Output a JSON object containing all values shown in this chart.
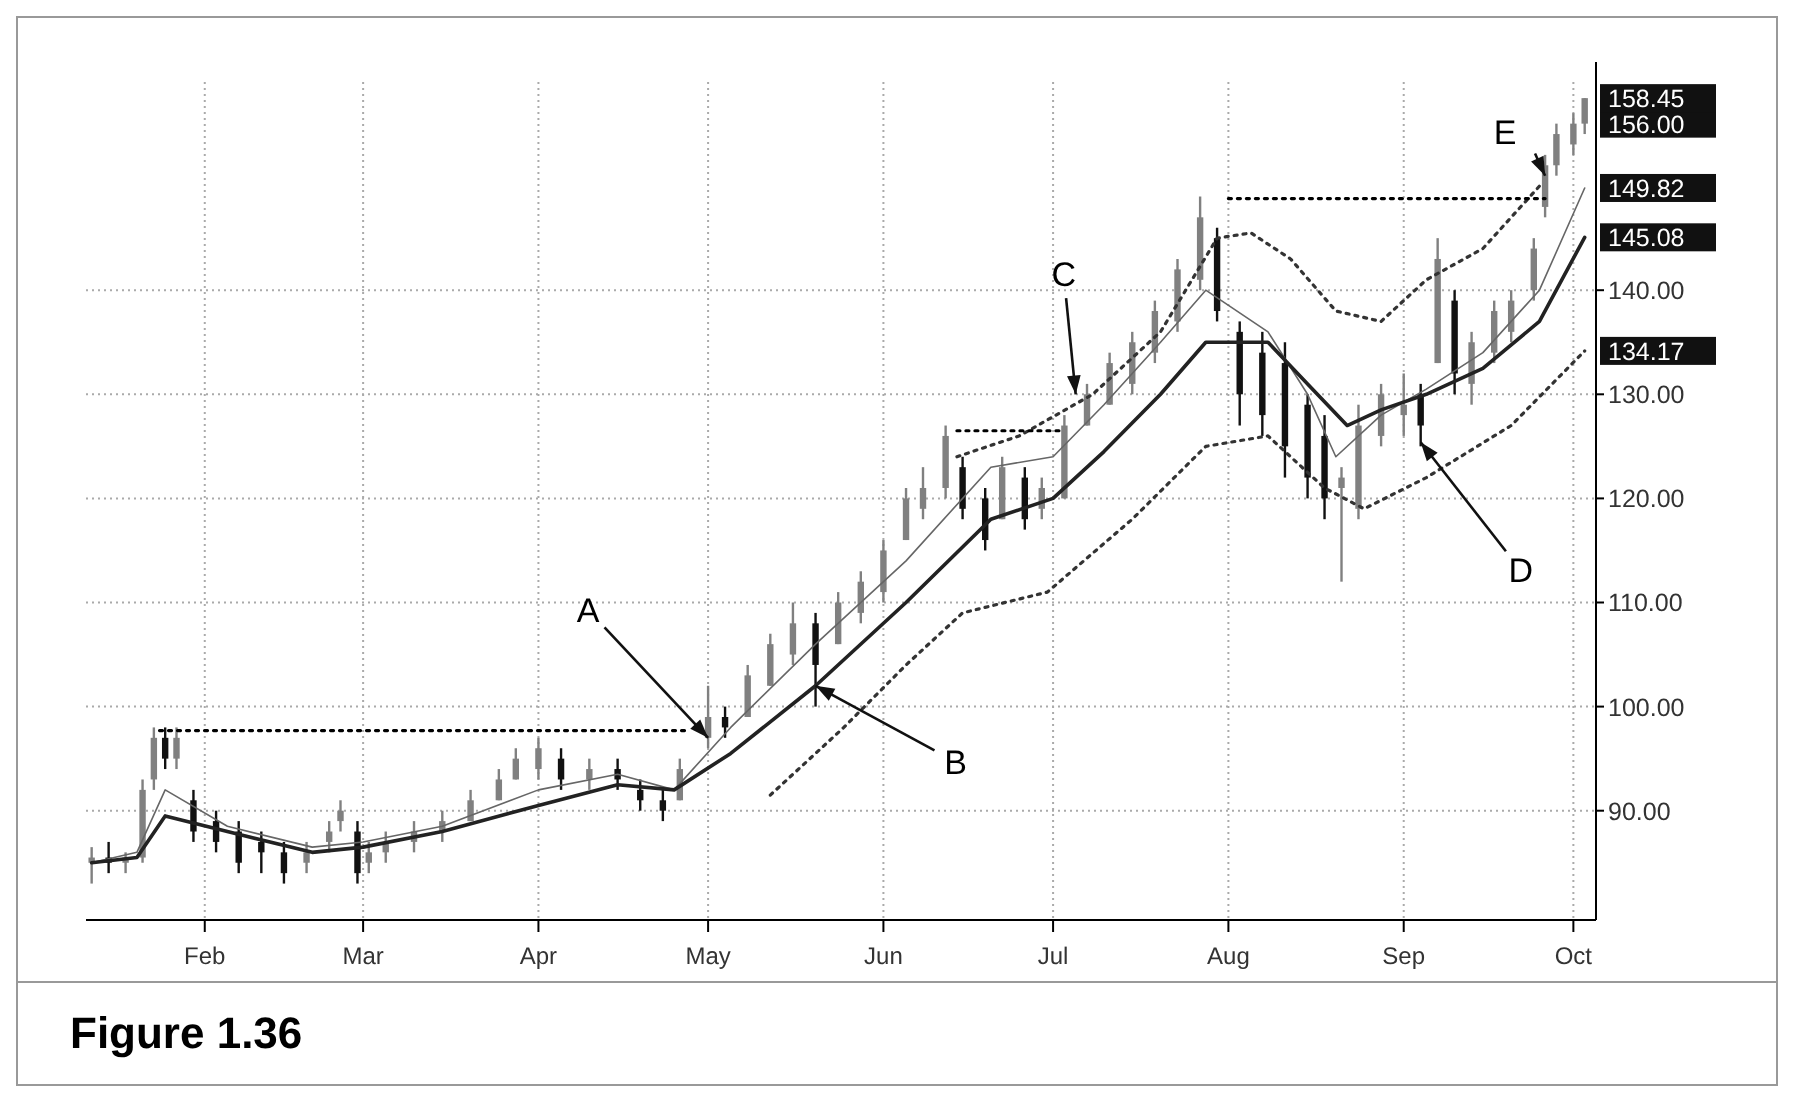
{
  "chart_data": {
    "type": "candlestick",
    "title": "Figure 1.36",
    "x": [
      "--01-12",
      "--01-15",
      "--01-18",
      "--01-21",
      "--01-23",
      "--01-25",
      "--01-27",
      "--01-30",
      "--02-03",
      "--02-07",
      "--02-11",
      "--02-15",
      "--02-19",
      "--02-23",
      "--02-25",
      "--02-28",
      "--03-02",
      "--03-05",
      "--03-10",
      "--03-15",
      "--03-20",
      "--03-25",
      "--03-28",
      "--04-01",
      "--04-05",
      "--04-10",
      "--04-15",
      "--04-19",
      "--04-23",
      "--04-26",
      "--05-01",
      "--05-04",
      "--05-08",
      "--05-12",
      "--05-16",
      "--05-20",
      "--05-24",
      "--05-28",
      "--06-01",
      "--06-05",
      "--06-08",
      "--06-12",
      "--06-15",
      "--06-19",
      "--06-22",
      "--06-26",
      "--06-29",
      "--07-03",
      "--07-07",
      "--07-11",
      "--07-15",
      "--07-19",
      "--07-23",
      "--07-27",
      "--07-30",
      "--08-03",
      "--08-07",
      "--08-11",
      "--08-15",
      "--08-18",
      "--08-21",
      "--08-24",
      "--08-28",
      "--09-01",
      "--09-04",
      "--09-07",
      "--09-10",
      "--09-13",
      "--09-17",
      "--09-20",
      "--09-24",
      "--09-26",
      "--09-28",
      "--10-01",
      "--10-03"
    ],
    "ohlc": [
      [
        85,
        86.5,
        83,
        85.5
      ],
      [
        85.5,
        87,
        84,
        85
      ],
      [
        85,
        86,
        84,
        85.5
      ],
      [
        85.5,
        93,
        85,
        92
      ],
      [
        93,
        98,
        92,
        97
      ],
      [
        97,
        98,
        94,
        95
      ],
      [
        95,
        98,
        94,
        97
      ],
      [
        91,
        92,
        87,
        88
      ],
      [
        89,
        90,
        86,
        87
      ],
      [
        88,
        89,
        84,
        85
      ],
      [
        87,
        88,
        84,
        86
      ],
      [
        86,
        87,
        83,
        84
      ],
      [
        85,
        87,
        84,
        86
      ],
      [
        87,
        89,
        86,
        88
      ],
      [
        89,
        91,
        88,
        90
      ],
      [
        88,
        89,
        83,
        84
      ],
      [
        85,
        87,
        84,
        86
      ],
      [
        86,
        88,
        85,
        87
      ],
      [
        87,
        89,
        86,
        88
      ],
      [
        88,
        90,
        87,
        89
      ],
      [
        89,
        92,
        89,
        91
      ],
      [
        91,
        94,
        91,
        93
      ],
      [
        93,
        96,
        93,
        95
      ],
      [
        94,
        97,
        93,
        96
      ],
      [
        95,
        96,
        92,
        93
      ],
      [
        93,
        95,
        92,
        94
      ],
      [
        94,
        95,
        92,
        93
      ],
      [
        92,
        93,
        90,
        91
      ],
      [
        91,
        92,
        89,
        90
      ],
      [
        91,
        95,
        91,
        94
      ],
      [
        97,
        102,
        96,
        99
      ],
      [
        99,
        100,
        97,
        98
      ],
      [
        99,
        104,
        99,
        103
      ],
      [
        102,
        107,
        102,
        106
      ],
      [
        105,
        110,
        104,
        108
      ],
      [
        108,
        109,
        100,
        104
      ],
      [
        106,
        111,
        106,
        110
      ],
      [
        109,
        113,
        108,
        112
      ],
      [
        111,
        116,
        110,
        115
      ],
      [
        116,
        121,
        116,
        120
      ],
      [
        119,
        123,
        118,
        121
      ],
      [
        121,
        127,
        120,
        126
      ],
      [
        123,
        124,
        118,
        119
      ],
      [
        120,
        121,
        115,
        116
      ],
      [
        118,
        124,
        118,
        123
      ],
      [
        122,
        123,
        117,
        118
      ],
      [
        119,
        122,
        118,
        121
      ],
      [
        120,
        128,
        120,
        127
      ],
      [
        127,
        131,
        127,
        130
      ],
      [
        129,
        134,
        129,
        133
      ],
      [
        131,
        136,
        130,
        135
      ],
      [
        134,
        139,
        133,
        138
      ],
      [
        137,
        143,
        136,
        142
      ],
      [
        141,
        149,
        140,
        147
      ],
      [
        145,
        146,
        137,
        138
      ],
      [
        136,
        137,
        127,
        130
      ],
      [
        134,
        136,
        126,
        128
      ],
      [
        133,
        135,
        122,
        125
      ],
      [
        129,
        130,
        120,
        122
      ],
      [
        126,
        128,
        118,
        120
      ],
      [
        121,
        123,
        112,
        122
      ],
      [
        119,
        129,
        118,
        127
      ],
      [
        126,
        131,
        125,
        130
      ],
      [
        128,
        132,
        126,
        129
      ],
      [
        130,
        131,
        125,
        127
      ],
      [
        133,
        145,
        133,
        143
      ],
      [
        139,
        140,
        130,
        132
      ],
      [
        131,
        136,
        129,
        135
      ],
      [
        134,
        139,
        133,
        138
      ],
      [
        136,
        140,
        135,
        139
      ],
      [
        140,
        145,
        139,
        144
      ],
      [
        148,
        153,
        147,
        152
      ],
      [
        152,
        156,
        151,
        155
      ],
      [
        154,
        157,
        153,
        156
      ],
      [
        156,
        158.45,
        155,
        158.45
      ]
    ],
    "series": [
      {
        "type": "line",
        "color": "#666666",
        "line_style": "solid",
        "x": [
          "--01-12",
          "--01-20",
          "--01-25",
          "--02-05",
          "--02-20",
          "--03-01",
          "--03-15",
          "--04-01",
          "--04-15",
          "--04-25",
          "--05-05",
          "--05-20",
          "--06-05",
          "--06-20",
          "--07-01",
          "--07-10",
          "--07-20",
          "--07-28",
          "--08-08",
          "--08-15",
          "--08-20",
          "--08-28",
          "--09-05",
          "--09-15",
          "--09-25",
          "--10-03"
        ],
        "values": [
          85,
          86,
          92,
          88.5,
          86.5,
          87,
          88.5,
          92,
          93.5,
          92,
          98,
          106,
          114,
          123,
          124,
          129,
          135,
          140,
          136,
          130,
          124,
          128,
          130.5,
          134,
          140,
          149.82
        ]
      },
      {
        "type": "line",
        "color": "#222222",
        "line_style": "solid",
        "x": [
          "--01-12",
          "--01-20",
          "--01-25",
          "--02-05",
          "--02-20",
          "--03-01",
          "--03-15",
          "--04-01",
          "--04-15",
          "--04-25",
          "--05-05",
          "--05-20",
          "--06-05",
          "--06-20",
          "--07-01",
          "--07-10",
          "--07-20",
          "--07-28",
          "--08-08",
          "--08-15",
          "--08-22",
          "--08-28",
          "--09-05",
          "--09-15",
          "--09-25",
          "--10-03"
        ],
        "values": [
          85,
          85.5,
          89.5,
          88,
          86,
          86.5,
          88,
          90.5,
          92.5,
          92,
          95.5,
          102,
          110,
          118,
          120,
          124.5,
          130,
          135,
          135,
          131,
          127,
          128.5,
          130,
          132.5,
          137,
          145.08
        ]
      },
      {
        "type": "line",
        "color": "#333333",
        "line_style": "dotted",
        "x": [
          "--06-14",
          "--06-25",
          "--07-08",
          "--07-20",
          "--07-30",
          "--08-05",
          "--08-12",
          "--08-20",
          "--08-28",
          "--09-05",
          "--09-15",
          "--09-25"
        ],
        "values": [
          124,
          126,
          130,
          136,
          145,
          145.5,
          143,
          138,
          137,
          141,
          144,
          150
        ]
      },
      {
        "type": "line",
        "color": "#333333",
        "line_style": "dotted",
        "x": [
          "--05-12",
          "--05-25",
          "--06-05",
          "--06-15",
          "--06-30",
          "--07-15",
          "--07-28",
          "--08-08",
          "--08-18",
          "--08-25",
          "--09-05",
          "--09-20",
          "--10-03"
        ],
        "values": [
          91.5,
          98,
          104,
          109,
          111,
          118,
          125,
          126,
          121,
          119,
          122,
          127,
          134.17
        ]
      },
      {
        "type": "line",
        "color": "#000000",
        "line_style": "dotted",
        "x": [
          "--01-24",
          "--04-27"
        ],
        "values": [
          97.7,
          97.7
        ]
      },
      {
        "type": "line",
        "color": "#000000",
        "line_style": "dotted",
        "x": [
          "--06-14",
          "--07-03"
        ],
        "values": [
          126.5,
          126.5
        ]
      },
      {
        "type": "line",
        "color": "#000000",
        "line_style": "dotted",
        "x": [
          "--08-01",
          "--09-26"
        ],
        "values": [
          148.8,
          148.8
        ]
      }
    ],
    "xlim": [
      "--01-11",
      "--10-05"
    ],
    "xticks": [
      {
        "value": "--02-01",
        "label": "Feb"
      },
      {
        "value": "--03-01",
        "label": "Mar"
      },
      {
        "value": "--04-01",
        "label": "Apr"
      },
      {
        "value": "--05-01",
        "label": "May"
      },
      {
        "value": "--06-01",
        "label": "Jun"
      },
      {
        "value": "--07-01",
        "label": "Jul"
      },
      {
        "value": "--08-01",
        "label": "Aug"
      },
      {
        "value": "--09-01",
        "label": "Sep"
      },
      {
        "value": "--10-01",
        "label": "Oct"
      }
    ],
    "ylim": [
      79.5,
      160
    ],
    "yticks": [
      {
        "value": 90,
        "label": "90.00"
      },
      {
        "value": 100,
        "label": "100.00"
      },
      {
        "value": 110,
        "label": "110.00"
      },
      {
        "value": 120,
        "label": "120.00"
      },
      {
        "value": 130,
        "label": "130.00"
      },
      {
        "value": 134.17,
        "label": "134.17"
      },
      {
        "value": 140,
        "label": "140.00"
      },
      {
        "value": 145.08,
        "label": "145.08"
      },
      {
        "value": 149.82,
        "label": "149.82"
      },
      {
        "value": 156,
        "label": "156.00"
      },
      {
        "value": 158.45,
        "label": "158.45"
      }
    ],
    "annotations": [
      {
        "text": "A",
        "x": "--05-01",
        "y": 97
      },
      {
        "text": "B",
        "x": "--05-20",
        "y": 102
      },
      {
        "text": "C",
        "x": "--07-05",
        "y": 130
      },
      {
        "text": "D",
        "x": "--09-04",
        "y": 125.4
      },
      {
        "text": "E",
        "x": "--09-26",
        "y": 151
      }
    ],
    "grid": true,
    "marker": "none"
  }
}
